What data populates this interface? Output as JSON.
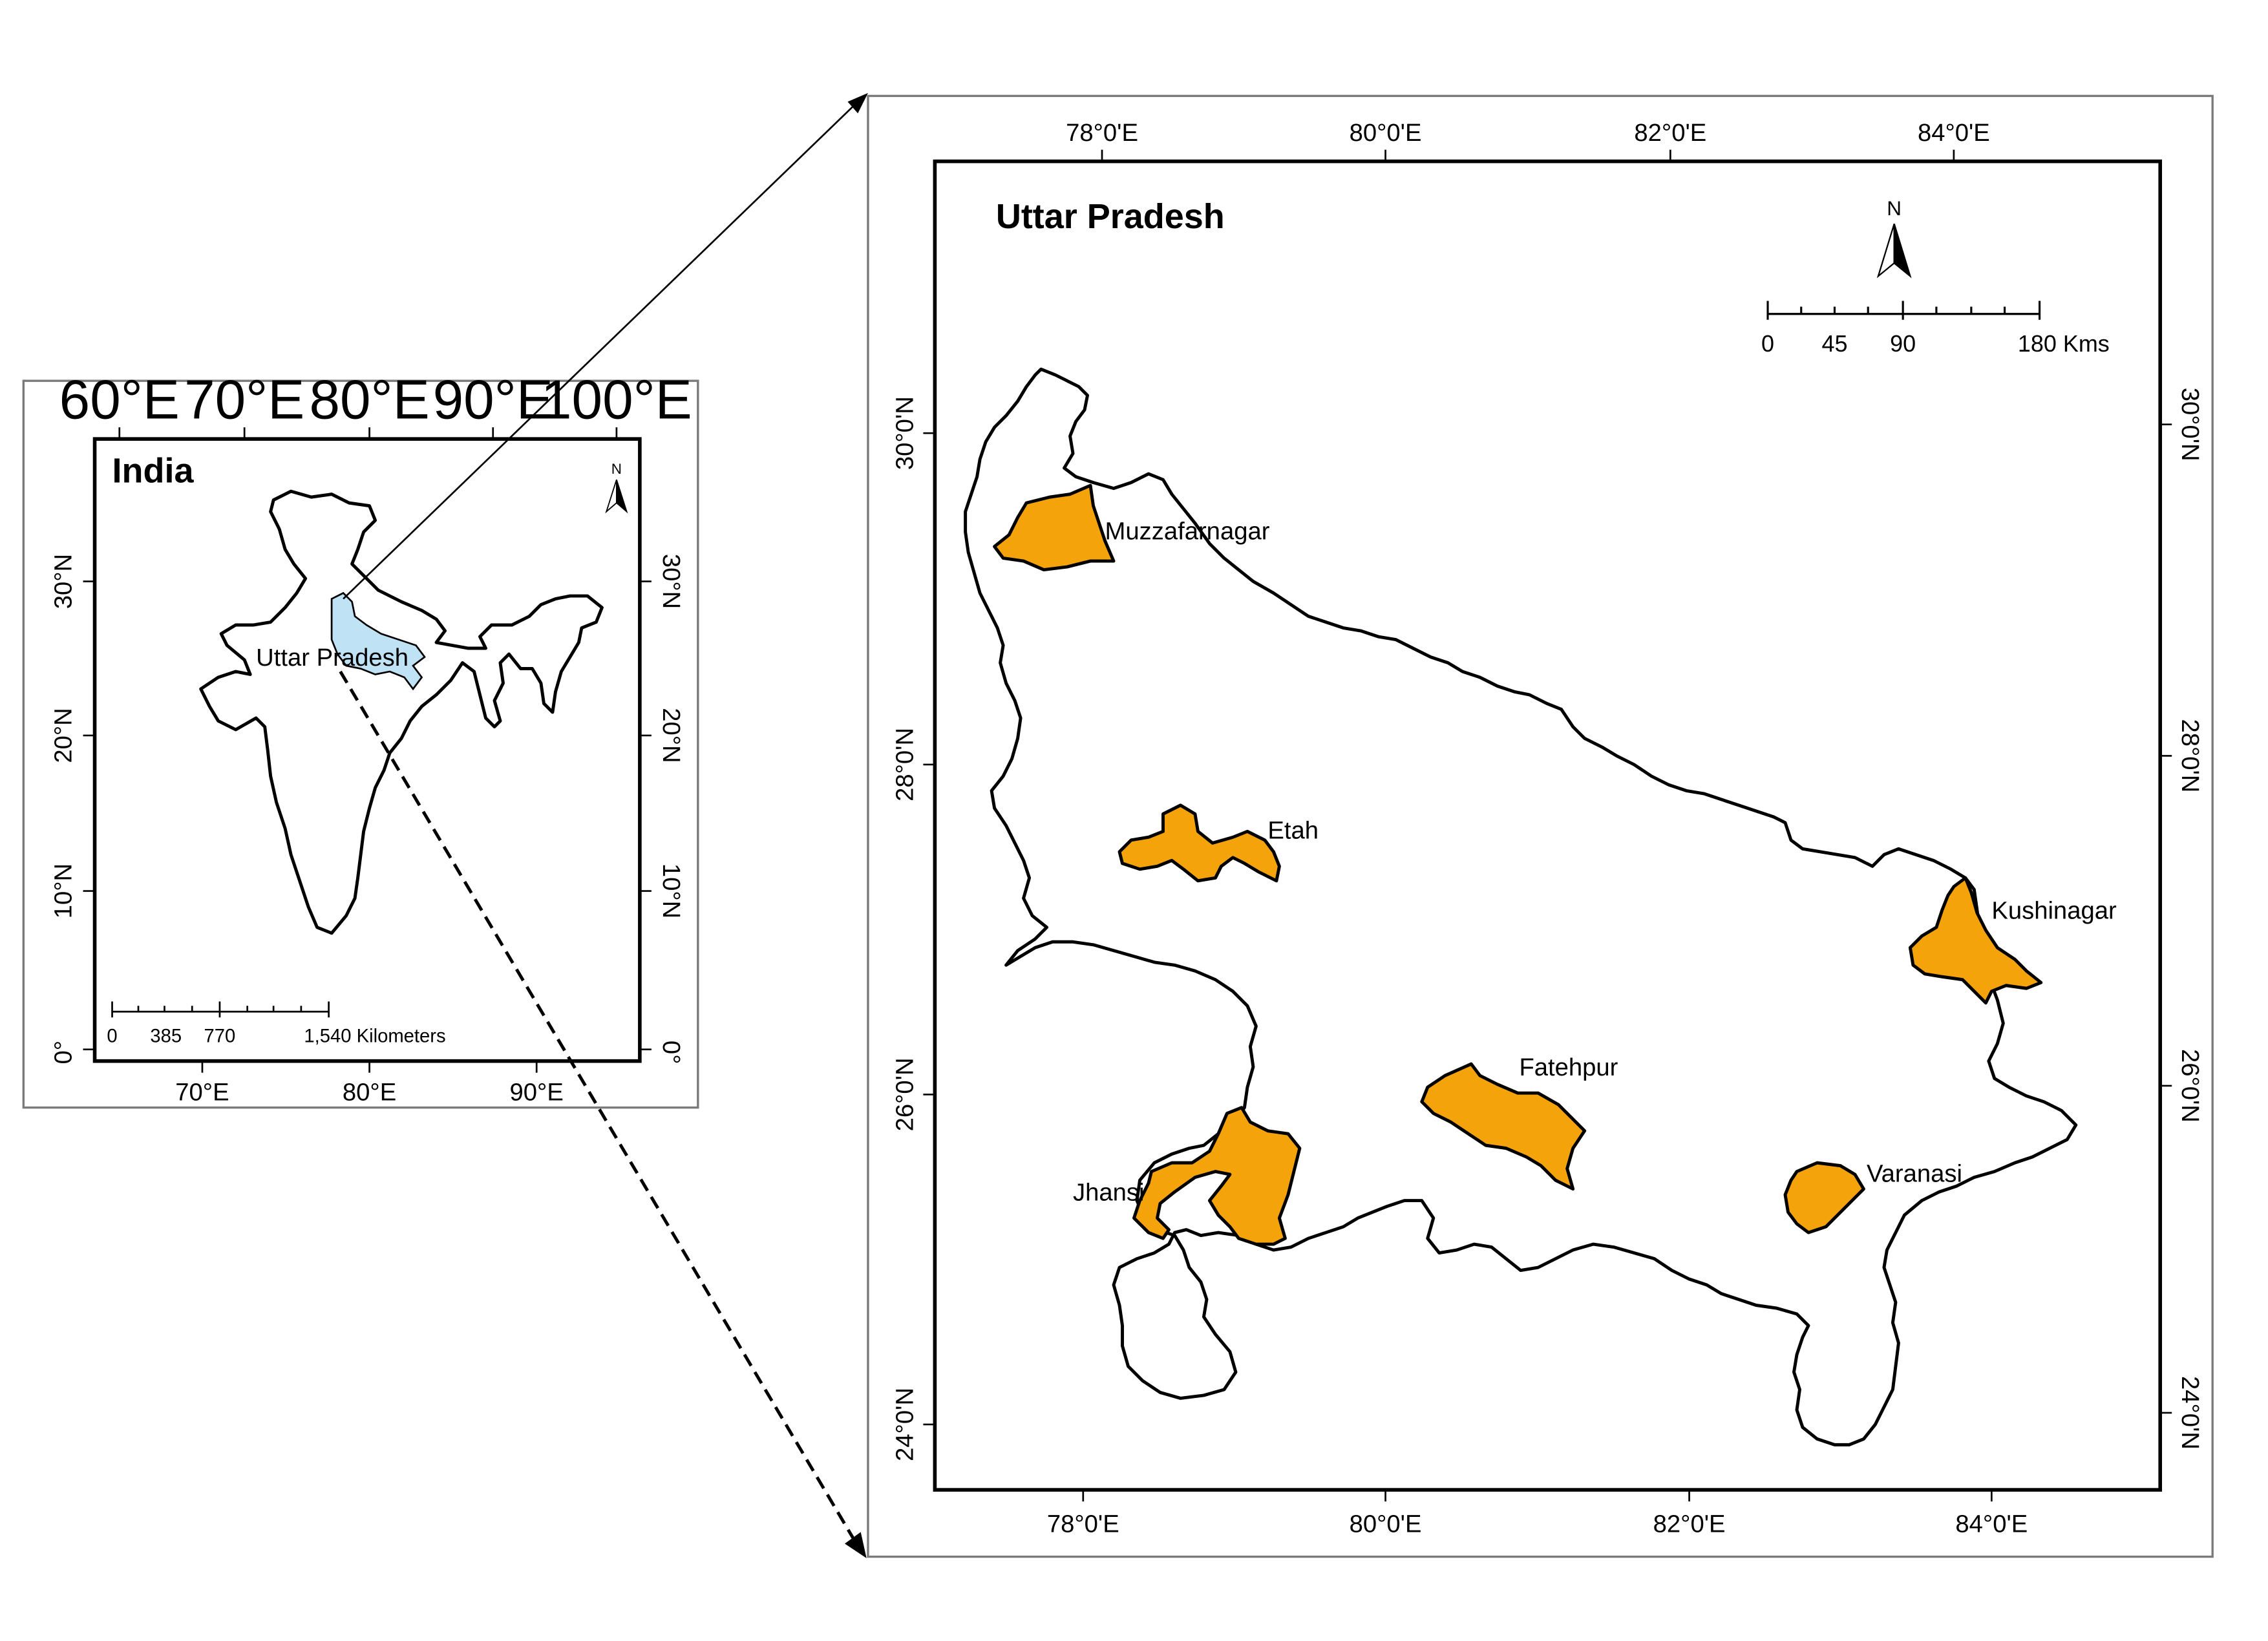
{
  "india_map": {
    "title": "India",
    "top_ticks": [
      "60°E",
      "70°E",
      "80°E",
      "90°E",
      "100°E"
    ],
    "bottom_ticks": [
      "70°E",
      "80°E",
      "90°E"
    ],
    "left_ticks": [
      "30°N",
      "20°N",
      "10°N",
      "0°"
    ],
    "right_ticks": [
      "30°N",
      "20°N",
      "10°N",
      "0°"
    ],
    "highlight_label": "Uttar Pradesh",
    "highlight_color": "#bfe3f5",
    "north_label": "N",
    "scale_labels": [
      "0",
      "385",
      "770",
      "1,540 Kilometers"
    ]
  },
  "up_map": {
    "title": "Uttar Pradesh",
    "top_ticks": [
      "78°0'E",
      "80°0'E",
      "82°0'E",
      "84°0'E"
    ],
    "bottom_ticks": [
      "78°0'E",
      "80°0'E",
      "82°0'E",
      "84°0'E"
    ],
    "left_ticks": [
      "30°0'N",
      "28°0'N",
      "26°0'N",
      "24°0'N"
    ],
    "right_ticks": [
      "30°0'N",
      "28°0'N",
      "26°0'N",
      "24°0'N"
    ],
    "north_label": "N",
    "scale_labels": [
      "0",
      "45",
      "90",
      "180 Kms"
    ],
    "district_color": "#f5a30a",
    "districts": [
      "Muzzafarnagar",
      "Etah",
      "Kushinagar",
      "Fatehpur",
      "Jhansi",
      "Varanasi"
    ]
  }
}
